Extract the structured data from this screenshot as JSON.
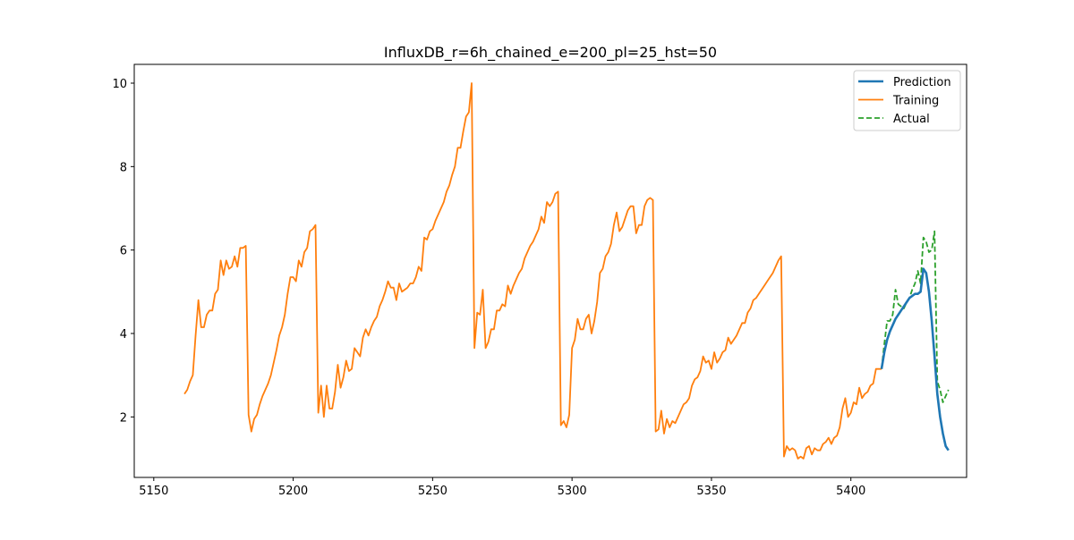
{
  "chart_data": {
    "type": "line",
    "title": "InfluxDB_r=6h_chained_e=200_pl=25_hst=50",
    "xlabel": "",
    "ylabel": "",
    "xlim": [
      5143,
      5081.5
    ],
    "ylim": [
      0.55,
      10.45
    ],
    "xticks": [
      5150,
      5200,
      5250,
      5300,
      5350,
      5400
    ],
    "yticks": [
      2,
      4,
      6,
      8,
      10
    ],
    "grid": false,
    "legend": {
      "placement": "top-right",
      "entries": [
        "Prediction",
        "Training",
        "Actual"
      ]
    },
    "series": [
      {
        "name": "Prediction",
        "color": "#1f77b4",
        "style": "solid",
        "x": [
          5411,
          5412,
          5413,
          5414,
          5415,
          5416,
          5417,
          5418,
          5419,
          5420,
          5421,
          5422,
          5423,
          5424,
          5425,
          5426,
          5427,
          5428,
          5429,
          5430,
          5431,
          5432,
          5433,
          5434,
          5435
        ],
        "y": [
          3.15,
          3.55,
          3.85,
          4.05,
          4.2,
          4.35,
          4.45,
          4.55,
          4.65,
          4.75,
          4.85,
          4.9,
          4.95,
          4.95,
          5.0,
          5.55,
          5.45,
          5.0,
          4.3,
          3.45,
          2.55,
          2.0,
          1.6,
          1.3,
          1.2
        ]
      },
      {
        "name": "Training",
        "color": "#ff7f0e",
        "style": "solid",
        "x": [
          5161,
          5162,
          5163,
          5164,
          5165,
          5166,
          5167,
          5168,
          5169,
          5170,
          5171,
          5172,
          5173,
          5174,
          5175,
          5176,
          5177,
          5178,
          5179,
          5180,
          5181,
          5182,
          5183,
          5184,
          5185,
          5186,
          5187,
          5188,
          5189,
          5190,
          5191,
          5192,
          5193,
          5194,
          5195,
          5196,
          5197,
          5198,
          5199,
          5200,
          5201,
          5202,
          5203,
          5204,
          5205,
          5206,
          5207,
          5208,
          5209,
          5210,
          5211,
          5212,
          5213,
          5214,
          5215,
          5216,
          5217,
          5218,
          5219,
          5220,
          5221,
          5222,
          5223,
          5224,
          5225,
          5226,
          5227,
          5228,
          5229,
          5230,
          5231,
          5232,
          5233,
          5234,
          5235,
          5236,
          5237,
          5238,
          5239,
          5240,
          5241,
          5242,
          5243,
          5244,
          5245,
          5246,
          5247,
          5248,
          5249,
          5250,
          5251,
          5252,
          5253,
          5254,
          5255,
          5256,
          5257,
          5258,
          5259,
          5260,
          5261,
          5262,
          5263,
          5264,
          5265,
          5266,
          5267,
          5268,
          5269,
          5270,
          5271,
          5272,
          5273,
          5274,
          5275,
          5276,
          5277,
          5278,
          5279,
          5280,
          5281,
          5282,
          5283,
          5284,
          5285,
          5286,
          5287,
          5288,
          5289,
          5290,
          5291,
          5292,
          5293,
          5294,
          5295,
          5296,
          5297,
          5298,
          5299,
          5300,
          5301,
          5302,
          5303,
          5304,
          5305,
          5306,
          5307,
          5308,
          5309,
          5310,
          5311,
          5312,
          5313,
          5314,
          5315,
          5316,
          5317,
          5318,
          5319,
          5320,
          5321,
          5322,
          5323,
          5324,
          5325,
          5326,
          5327,
          5328,
          5329,
          5330,
          5331,
          5332,
          5333,
          5334,
          5335,
          5336,
          5337,
          5338,
          5339,
          5340,
          5341,
          5342,
          5343,
          5344,
          5345,
          5346,
          5347,
          5348,
          5349,
          5350,
          5351,
          5352,
          5353,
          5354,
          5355,
          5356,
          5357,
          5358,
          5359,
          5360,
          5361,
          5362,
          5363,
          5364,
          5365,
          5366,
          5367,
          5368,
          5369,
          5370,
          5371,
          5372,
          5373,
          5374,
          5375,
          5376,
          5377,
          5378,
          5379,
          5380,
          5381,
          5382,
          5383,
          5384,
          5385,
          5386,
          5387,
          5388,
          5389,
          5390,
          5391,
          5392,
          5393,
          5394,
          5395,
          5396,
          5397,
          5398,
          5399,
          5400,
          5401,
          5402,
          5403,
          5404,
          5405,
          5406,
          5407,
          5408,
          5409,
          5410,
          5411
        ],
        "y": [
          2.55,
          2.65,
          2.85,
          3.0,
          3.95,
          4.8,
          4.15,
          4.15,
          4.45,
          4.55,
          4.55,
          4.95,
          5.05,
          5.75,
          5.4,
          5.75,
          5.55,
          5.6,
          5.85,
          5.6,
          6.05,
          6.05,
          6.1,
          2.05,
          1.65,
          1.95,
          2.05,
          2.3,
          2.5,
          2.65,
          2.8,
          3.0,
          3.3,
          3.6,
          3.95,
          4.15,
          4.45,
          4.95,
          5.35,
          5.35,
          5.25,
          5.75,
          5.6,
          5.95,
          6.05,
          6.45,
          6.5,
          6.6,
          2.1,
          2.75,
          2.0,
          2.75,
          2.2,
          2.2,
          2.6,
          3.25,
          2.7,
          2.95,
          3.35,
          3.1,
          3.15,
          3.65,
          3.55,
          3.45,
          3.9,
          4.1,
          3.95,
          4.15,
          4.3,
          4.4,
          4.65,
          4.8,
          5.0,
          5.25,
          5.1,
          5.1,
          4.8,
          5.2,
          5.0,
          5.05,
          5.1,
          5.2,
          5.2,
          5.35,
          5.6,
          5.5,
          6.3,
          6.25,
          6.45,
          6.5,
          6.7,
          6.85,
          7.0,
          7.15,
          7.4,
          7.55,
          7.8,
          8.0,
          8.45,
          8.45,
          8.85,
          9.2,
          9.3,
          10.0,
          3.65,
          4.5,
          4.45,
          5.05,
          3.65,
          3.8,
          4.1,
          4.1,
          4.55,
          4.55,
          4.7,
          4.65,
          5.15,
          4.95,
          5.15,
          5.3,
          5.45,
          5.55,
          5.8,
          5.95,
          6.1,
          6.2,
          6.35,
          6.5,
          6.8,
          6.65,
          7.15,
          7.05,
          7.15,
          7.35,
          7.4,
          1.8,
          1.9,
          1.75,
          2.05,
          3.65,
          3.85,
          4.35,
          4.1,
          4.1,
          4.35,
          4.45,
          4.0,
          4.3,
          4.75,
          5.45,
          5.55,
          5.85,
          5.95,
          6.15,
          6.6,
          6.9,
          6.45,
          6.55,
          6.75,
          6.95,
          7.05,
          7.05,
          6.4,
          6.6,
          6.6,
          7.05,
          7.2,
          7.25,
          7.2,
          1.65,
          1.7,
          2.15,
          1.6,
          1.95,
          1.75,
          1.9,
          1.85,
          2.0,
          2.15,
          2.3,
          2.35,
          2.45,
          2.75,
          2.9,
          2.95,
          3.1,
          3.45,
          3.3,
          3.35,
          3.15,
          3.55,
          3.3,
          3.4,
          3.55,
          3.6,
          3.9,
          3.75,
          3.85,
          3.95,
          4.1,
          4.25,
          4.25,
          4.5,
          4.6,
          4.8,
          4.85,
          4.95,
          5.05,
          5.15,
          5.25,
          5.35,
          5.45,
          5.6,
          5.75,
          5.85,
          1.05,
          1.3,
          1.2,
          1.25,
          1.2,
          1.0,
          1.05,
          1.0,
          1.25,
          1.3,
          1.1,
          1.25,
          1.2,
          1.2,
          1.35,
          1.4,
          1.5,
          1.35,
          1.5,
          1.55,
          1.75,
          2.2,
          2.45,
          2.0,
          2.1,
          2.35,
          2.3,
          2.7,
          2.45,
          2.55,
          2.6,
          2.75,
          2.8,
          3.15,
          3.15,
          3.15
        ]
      },
      {
        "name": "Actual",
        "color": "#2ca02c",
        "style": "dashed",
        "x": [
          5411,
          5412,
          5413,
          5414,
          5415,
          5416,
          5417,
          5418,
          5419,
          5420,
          5421,
          5422,
          5423,
          5424,
          5425,
          5426,
          5427,
          5428,
          5429,
          5430,
          5431,
          5432,
          5433,
          5434,
          5435
        ],
        "y": [
          3.15,
          3.75,
          4.3,
          4.3,
          4.45,
          5.05,
          4.7,
          4.65,
          4.6,
          4.75,
          4.85,
          5.05,
          5.2,
          5.5,
          5.2,
          6.3,
          6.2,
          5.95,
          6.0,
          6.45,
          2.85,
          2.65,
          2.35,
          2.5,
          2.65
        ]
      }
    ]
  }
}
